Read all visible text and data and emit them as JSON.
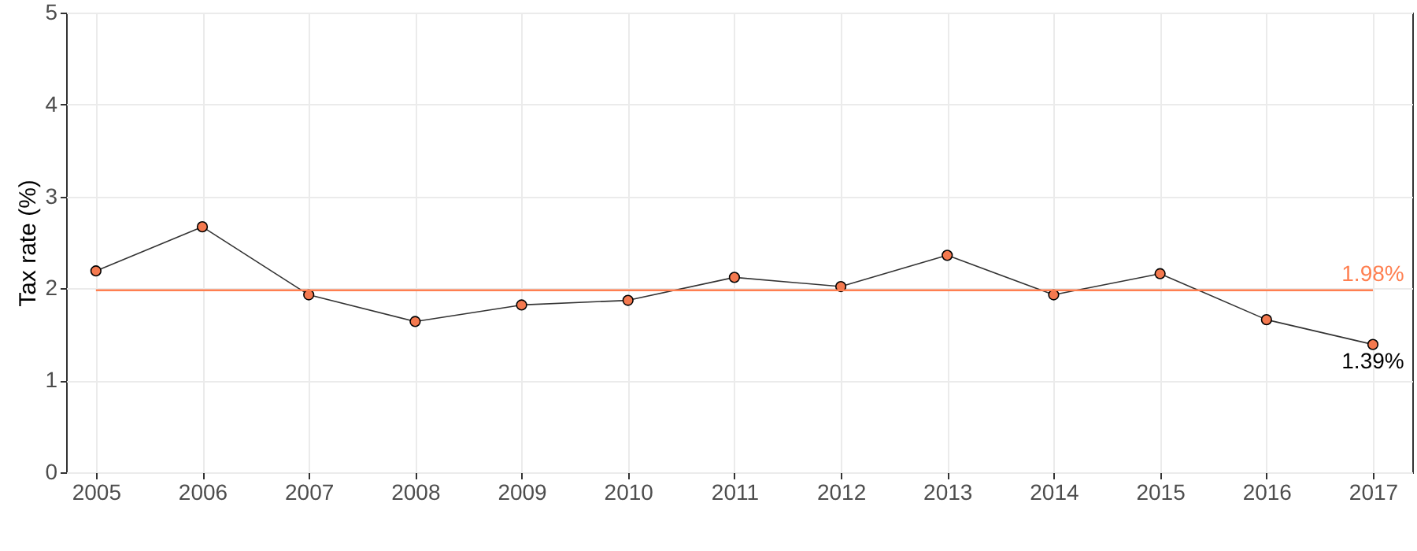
{
  "chart_data": {
    "type": "line",
    "ylabel": "Tax rate (%)",
    "x": [
      2005,
      2006,
      2007,
      2008,
      2009,
      2010,
      2011,
      2012,
      2013,
      2014,
      2015,
      2016,
      2017
    ],
    "series": [
      {
        "color": "#333333",
        "values": [
          2.19,
          2.67,
          1.93,
          1.64,
          1.82,
          1.87,
          2.12,
          2.02,
          2.36,
          1.93,
          2.16,
          1.66,
          1.39
        ]
      }
    ],
    "xlim": [
      2004.72,
      2017.37
    ],
    "xticks": [
      2005,
      2006,
      2007,
      2008,
      2009,
      2010,
      2011,
      2012,
      2013,
      2014,
      2015,
      2016,
      2017
    ],
    "ylim": [
      0,
      5
    ],
    "yticks": [
      0,
      1,
      2,
      3,
      4,
      5
    ],
    "ref_lines": [
      {
        "axis": "y",
        "value": 1.98,
        "label": "1.98%",
        "color": "#ff7f50"
      }
    ],
    "annotations": [
      {
        "text": "1.39%",
        "x": 2017,
        "y": 1.39
      }
    ],
    "grid": true,
    "marker": "circle",
    "line_style": "solid"
  }
}
